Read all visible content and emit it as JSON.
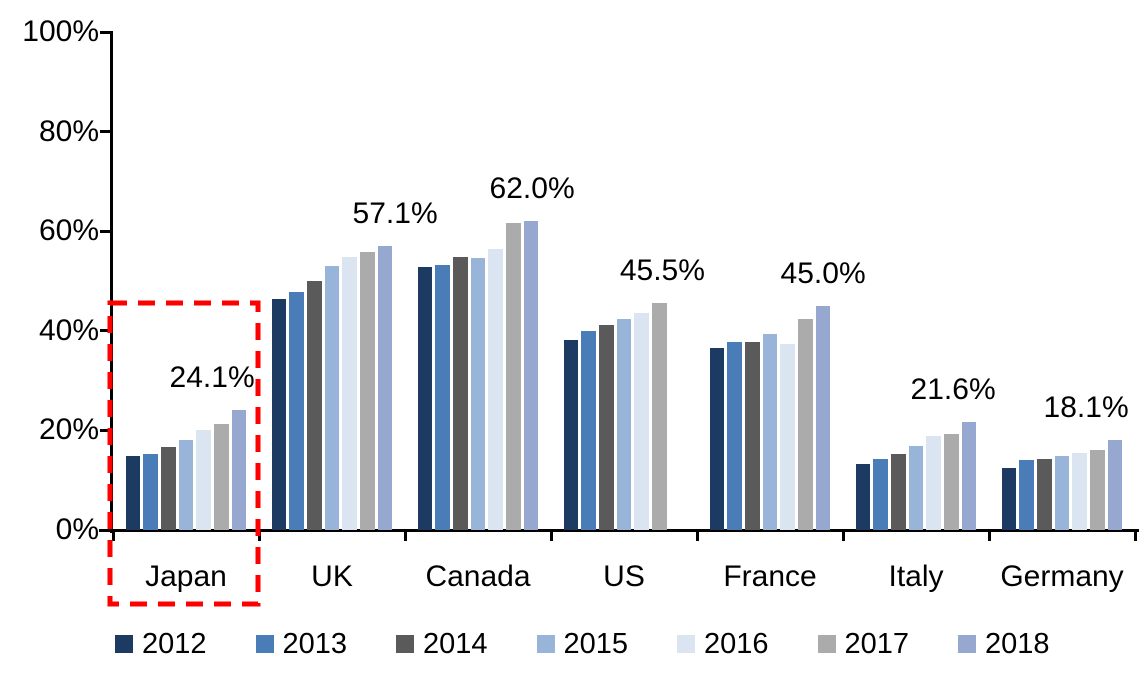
{
  "chart_data": {
    "type": "bar",
    "title": "",
    "xlabel": "",
    "ylabel": "",
    "categories": [
      "Japan",
      "UK",
      "Canada",
      "US",
      "France",
      "Italy",
      "Germany"
    ],
    "series": [
      {
        "name": "2012",
        "color": "#1D3A62",
        "values": [
          14.9,
          46.3,
          52.9,
          38.2,
          36.5,
          13.2,
          12.4
        ]
      },
      {
        "name": "2013",
        "color": "#4A7CB8",
        "values": [
          15.2,
          47.7,
          53.3,
          40.0,
          37.7,
          14.2,
          14.0
        ]
      },
      {
        "name": "2014",
        "color": "#5A5A5A",
        "values": [
          16.7,
          50.0,
          54.8,
          41.2,
          37.7,
          15.3,
          14.3
        ]
      },
      {
        "name": "2015",
        "color": "#98B4D8",
        "values": [
          18.1,
          53.1,
          54.6,
          42.3,
          39.3,
          16.9,
          14.9
        ]
      },
      {
        "name": "2016",
        "color": "#DBE4F1",
        "values": [
          20.0,
          54.8,
          56.4,
          43.6,
          37.3,
          18.9,
          15.5
        ]
      },
      {
        "name": "2017",
        "color": "#ABABAB",
        "values": [
          21.2,
          55.9,
          61.6,
          45.5,
          42.3,
          19.2,
          16.0
        ]
      },
      {
        "name": "2018",
        "color": "#97A8D0",
        "values": [
          24.1,
          57.1,
          62.0,
          null,
          45.0,
          21.6,
          18.1
        ]
      }
    ],
    "data_labels": [
      "24.1%",
      "57.1%",
      "62.0%",
      "45.5%",
      "45.0%",
      "21.6%",
      "18.1%"
    ],
    "yticks": [
      "0%",
      "20%",
      "40%",
      "60%",
      "80%",
      "100%"
    ],
    "ylim": [
      0,
      100
    ],
    "grid": false,
    "legend_position": "bottom",
    "highlight": {
      "category": "Japan",
      "color": "#FF0000",
      "style": "dashed-rectangle"
    }
  }
}
